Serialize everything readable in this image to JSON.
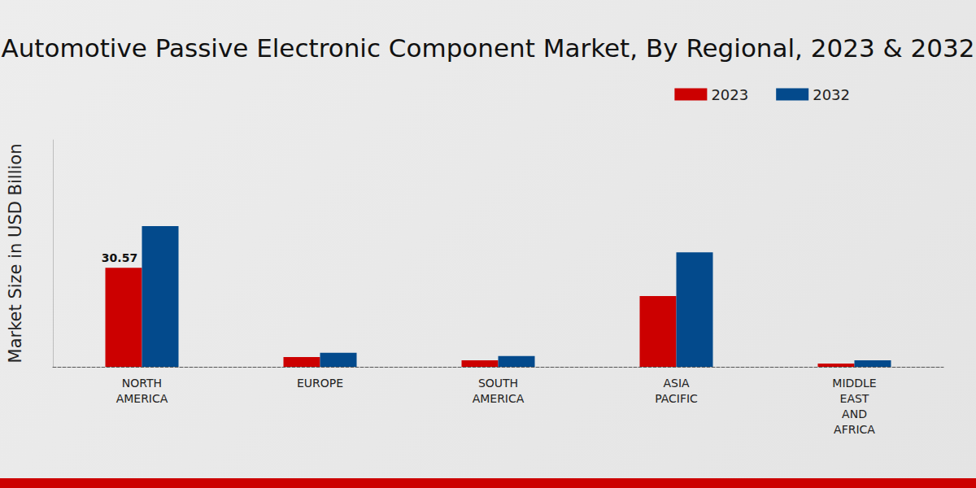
{
  "chart_data": {
    "type": "bar",
    "title": "Automotive Passive Electronic Component Market, By Regional, 2023 & 2032",
    "y_label": "Market Size in USD Billion",
    "categories": [
      "NORTH\nAMERICA",
      "EUROPE",
      "SOUTH\nAMERICA",
      "ASIA\nPACIFIC",
      "MIDDLE\nEAST\nAND\nAFRICA"
    ],
    "series": [
      {
        "name": "2023",
        "color": "#cc0000",
        "values": [
          30.57,
          3.0,
          2.0,
          21.8,
          1.0
        ]
      },
      {
        "name": "2032",
        "color": "#034a8c",
        "values": [
          43.4,
          4.3,
          3.3,
          35.3,
          2.0
        ]
      }
    ],
    "annotations": [
      {
        "text": "30.57",
        "series": "2023",
        "category": "NORTH\nAMERICA"
      }
    ],
    "ylim": [
      0,
      70
    ],
    "tick_labels": "x",
    "grid": false,
    "legend": "top-right"
  }
}
